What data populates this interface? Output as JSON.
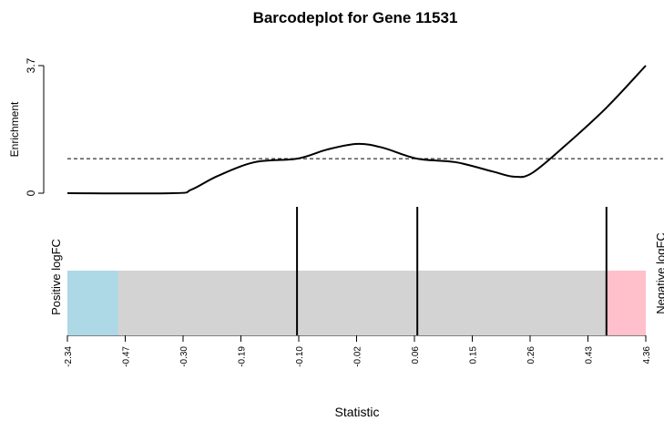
{
  "chart_data": {
    "type": "barcode",
    "title": "Barcodeplot for Gene 11531",
    "ylabel": "Enrichment",
    "xlabel": "Statistic",
    "ylim": [
      0,
      3.7
    ],
    "yticks": [
      0,
      3.7
    ],
    "xlim": [
      0,
      1
    ],
    "xticks": [
      {
        "value": 0,
        "label": "-2.34"
      },
      {
        "value": 0.1,
        "label": "-0.47"
      },
      {
        "value": 0.2,
        "label": "-0.30"
      },
      {
        "value": 0.3,
        "label": "-0.19"
      },
      {
        "value": 0.4,
        "label": "-0.10"
      },
      {
        "value": 0.5,
        "label": "-0.02"
      },
      {
        "value": 0.6,
        "label": "0.06"
      },
      {
        "value": 0.7,
        "label": "0.15"
      },
      {
        "value": 0.8,
        "label": "0.26"
      },
      {
        "value": 0.9,
        "label": "0.43"
      },
      {
        "value": 1,
        "label": "4.36"
      }
    ],
    "enrichment_x": [
      0,
      0.183,
      0.214,
      0.26,
      0.324,
      0.397,
      0.45,
      0.502,
      0.545,
      0.605,
      0.671,
      0.735,
      0.772,
      0.803,
      0.86,
      0.932,
      1
    ],
    "enrichment_values": [
      0,
      0,
      0.1,
      0.5,
      0.9,
      1.0,
      1.27,
      1.43,
      1.32,
      1.0,
      0.9,
      0.63,
      0.48,
      0.58,
      1.37,
      2.48,
      3.7
    ],
    "reference_line": 1.0,
    "barcode_x": [
      0.397,
      0.605,
      0.932
    ],
    "regions": [
      {
        "xlim": [
          0,
          0.088
        ],
        "color": "#add8e6"
      },
      {
        "xlim": [
          0.088,
          0.932
        ],
        "color": "#d3d3d3"
      },
      {
        "xlim": [
          0.932,
          1
        ],
        "color": "#ffc0cb"
      }
    ],
    "left_label": "Positive logFC",
    "right_label": "Negative logFC"
  }
}
